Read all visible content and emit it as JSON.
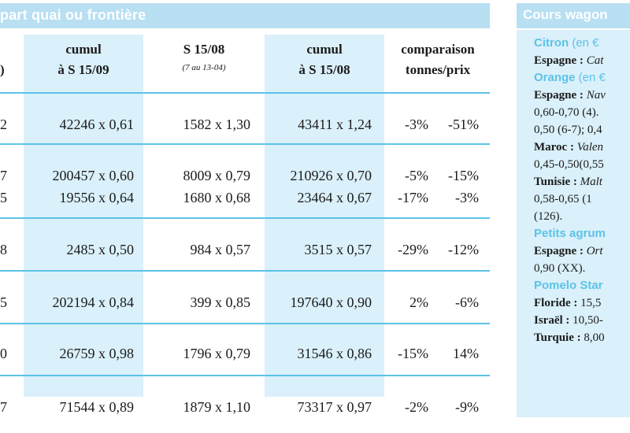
{
  "left_table": {
    "title": "part quai ou frontière",
    "headers": [
      {
        "line1": "",
        "line2": ")"
      },
      {
        "line1": "cumul",
        "line2": "à S 15/09"
      },
      {
        "line1": "S 15/08",
        "line2": "(7 au 13-04)"
      },
      {
        "line1": "cumul",
        "line2": "à S 15/08"
      },
      {
        "line1": "comparaison",
        "line2": "tonnes/prix"
      }
    ],
    "rows": [
      {
        "c0": "2",
        "c1": "42246 x 0,61",
        "c2": "1582 x 1,30",
        "c3": "43411 x 1,24",
        "ta": "-3%",
        "tb": "-51%"
      },
      {
        "c0": "7",
        "c1": "200457 x 0,60",
        "c2": "8009 x 0,79",
        "c3": "210926 x 0,70",
        "ta": "-5%",
        "tb": "-15%"
      },
      {
        "c0": "5",
        "c1": "19556 x 0,64",
        "c2": "1680 x 0,68",
        "c3": "23464 x 0,67",
        "ta": "-17%",
        "tb": "-3%"
      },
      {
        "c0": "8",
        "c1": "2485 x 0,50",
        "c2": "984 x 0,57",
        "c3": "3515 x 0,57",
        "ta": "-29%",
        "tb": "-12%"
      },
      {
        "c0": "5",
        "c1": "202194 x 0,84",
        "c2": "399 x 0,85",
        "c3": "197640 x 0,90",
        "ta": "2%",
        "tb": "-6%"
      },
      {
        "c0": "0",
        "c1": "26759 x 0,98",
        "c2": "1796 x 0,79",
        "c3": "31546 x 0,86",
        "ta": "-15%",
        "tb": "14%"
      },
      {
        "c0": "7",
        "c1": "71544 x 0,89",
        "c2": "1879 x 1,10",
        "c3": "73317 x 0,97",
        "ta": "-2%",
        "tb": "-9%"
      }
    ]
  },
  "right_panel": {
    "title": "Cours wagon",
    "lines": [
      {
        "type": "sect",
        "name": "Citron",
        "unit": " (en €"
      },
      {
        "type": "entry",
        "bold": "Espagne : ",
        "italic": "Cat",
        "text": ""
      },
      {
        "type": "sect",
        "name": "Orange",
        "unit": " (en €"
      },
      {
        "type": "entry",
        "bold": "Espagne : ",
        "italic": "Nav",
        "text": ""
      },
      {
        "type": "entry",
        "bold": "",
        "italic": "",
        "text": "0,60-0,70 (4)."
      },
      {
        "type": "entry",
        "bold": "",
        "italic": "",
        "text": "0,50 (6-7); 0,4"
      },
      {
        "type": "entry",
        "bold": "Maroc : ",
        "italic": "Valen",
        "text": ""
      },
      {
        "type": "entry",
        "bold": "",
        "italic": "",
        "text": "0,45-0,50(0,55"
      },
      {
        "type": "entry",
        "bold": "Tunisie : ",
        "italic": "Malt",
        "text": ""
      },
      {
        "type": "entry",
        "bold": "",
        "italic": "",
        "text": "0,58-0,65 (1"
      },
      {
        "type": "entry",
        "bold": "",
        "italic": "",
        "text": "(126)."
      },
      {
        "type": "sect",
        "name": "Petits agrum",
        "unit": ""
      },
      {
        "type": "entry",
        "bold": "Espagne : ",
        "italic": "Ort",
        "text": ""
      },
      {
        "type": "entry",
        "bold": "",
        "italic": "",
        "text": "0,90 (XX)."
      },
      {
        "type": "sect",
        "name": "Pomelo Star",
        "unit": ""
      },
      {
        "type": "entry",
        "bold": "Floride : ",
        "italic": "",
        "text": "15,5"
      },
      {
        "type": "entry",
        "bold": "Israël : ",
        "italic": "",
        "text": "10,50-"
      },
      {
        "type": "entry",
        "bold": "Turquie : ",
        "italic": "",
        "text": "8,00"
      }
    ]
  }
}
